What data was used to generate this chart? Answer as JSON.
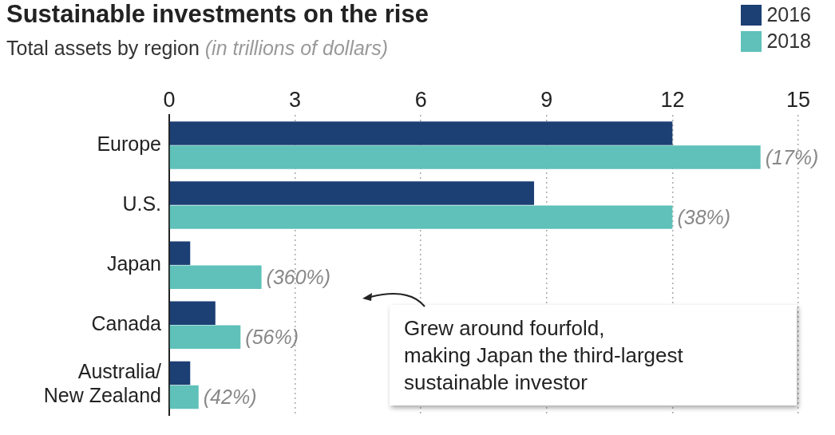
{
  "chart_data": {
    "type": "bar",
    "orientation": "horizontal",
    "title": "Sustainable investments on the rise",
    "subtitle": "Total assets by region (in trillions of dollars)",
    "categories": [
      "Europe",
      "U.S.",
      "Japan",
      "Canada",
      "Australia/\nNew Zealand"
    ],
    "series": [
      {
        "name": "2016",
        "color": "#1c3f74",
        "values": [
          12.0,
          8.7,
          0.5,
          1.1,
          0.5
        ]
      },
      {
        "name": "2018",
        "color": "#5fc1b9",
        "values": [
          14.1,
          12.0,
          2.2,
          1.7,
          0.7
        ]
      }
    ],
    "xlim": [
      0,
      15
    ],
    "xticks": [
      0,
      3,
      6,
      9,
      12,
      15
    ],
    "grid": "x",
    "legend": "top right",
    "annotations": [
      "Grew around fourfold,\nmaking Japan the third-largest\nsustainable investor",
      {
        "text": "(17%)",
        "x": 14.1,
        "y": "Europe"
      },
      {
        "text": "(38%)",
        "x": 12.0,
        "y": "U.S."
      },
      {
        "text": "(360%)",
        "x": 2.2,
        "y": "Japan"
      },
      {
        "text": "(56%)",
        "x": 1.7,
        "y": "Canada"
      },
      {
        "text": "(42%)",
        "x": 0.7,
        "y": "Australia/\nNew Zealand"
      }
    ]
  }
}
